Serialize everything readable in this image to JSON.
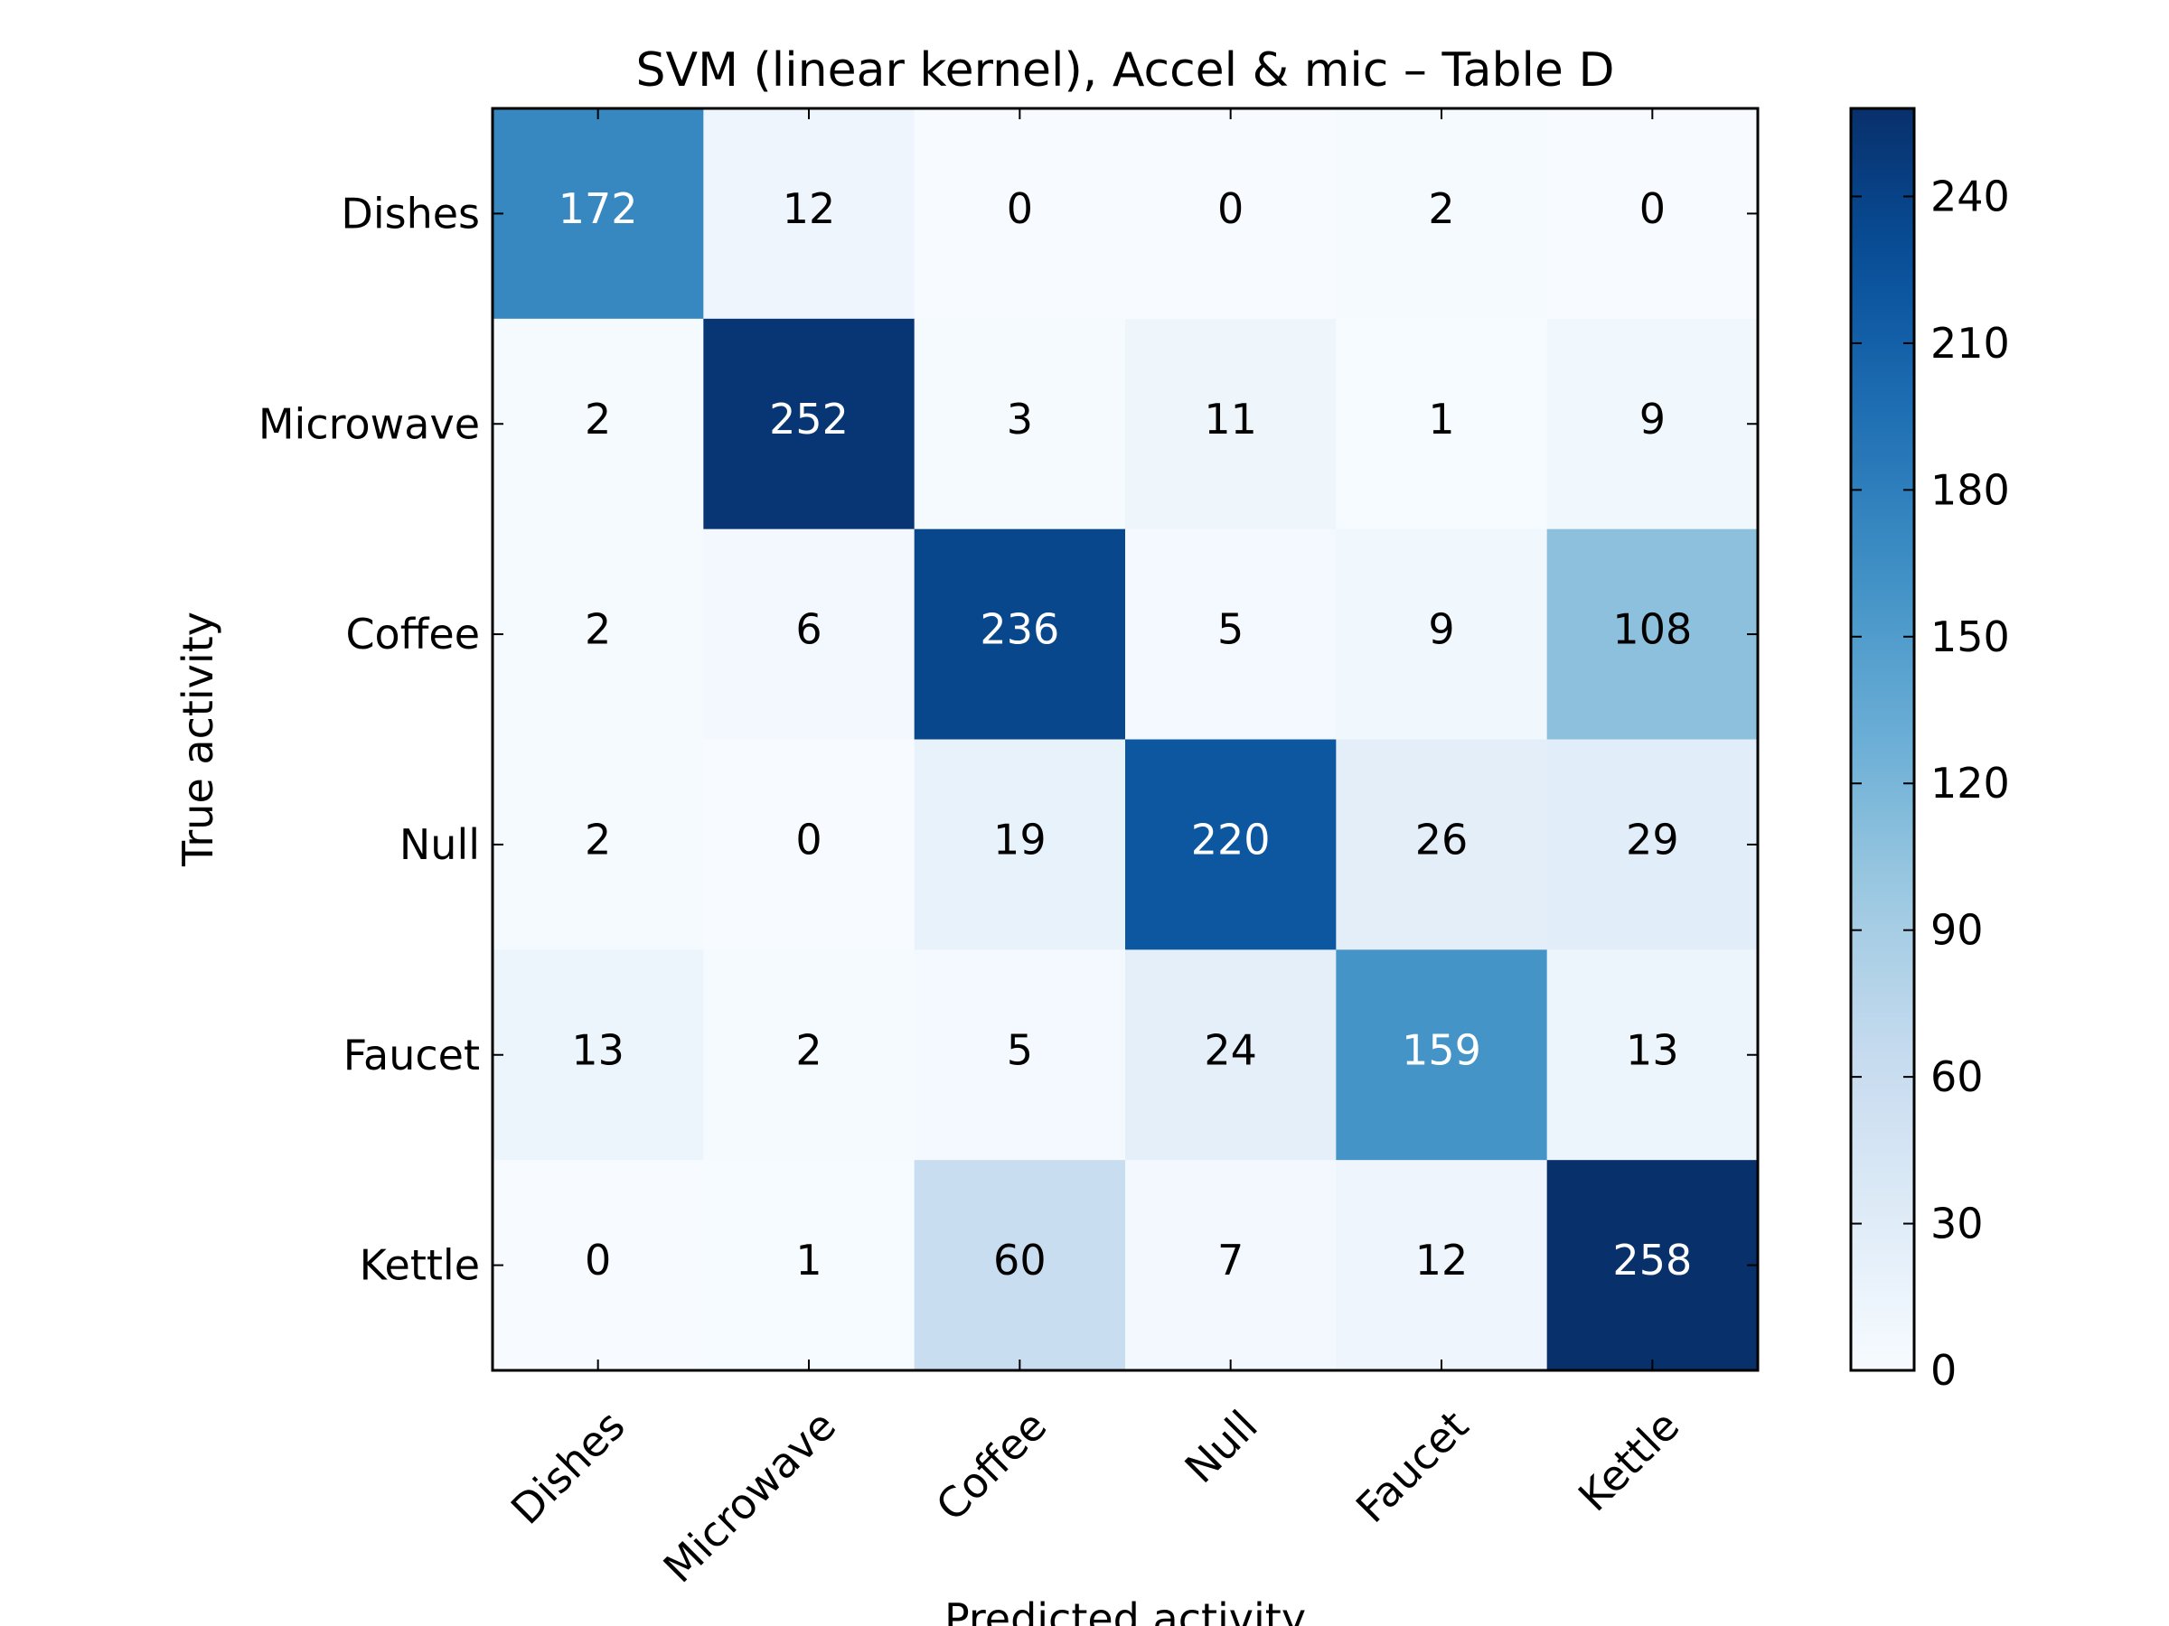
{
  "chart_data": {
    "type": "heatmap",
    "title": "SVM (linear kernel), Accel & mic – Table D",
    "xlabel": "Predicted activity",
    "ylabel": "True activity",
    "row_labels": [
      "Dishes",
      "Microwave",
      "Coffee",
      "Null",
      "Faucet",
      "Kettle"
    ],
    "col_labels": [
      "Dishes",
      "Microwave",
      "Coffee",
      "Null",
      "Faucet",
      "Kettle"
    ],
    "values": [
      [
        172,
        12,
        0,
        0,
        2,
        0
      ],
      [
        2,
        252,
        3,
        11,
        1,
        9
      ],
      [
        2,
        6,
        236,
        5,
        9,
        108
      ],
      [
        2,
        0,
        19,
        220,
        26,
        29
      ],
      [
        13,
        2,
        5,
        24,
        159,
        13
      ],
      [
        0,
        1,
        60,
        7,
        12,
        258
      ]
    ],
    "colormap": "Blues",
    "colorbar": {
      "min": 0,
      "max": 258,
      "ticks": [
        0,
        30,
        60,
        90,
        120,
        150,
        180,
        210,
        240
      ]
    },
    "text_color_light": "#ffffff",
    "text_color_dark": "#000000"
  }
}
